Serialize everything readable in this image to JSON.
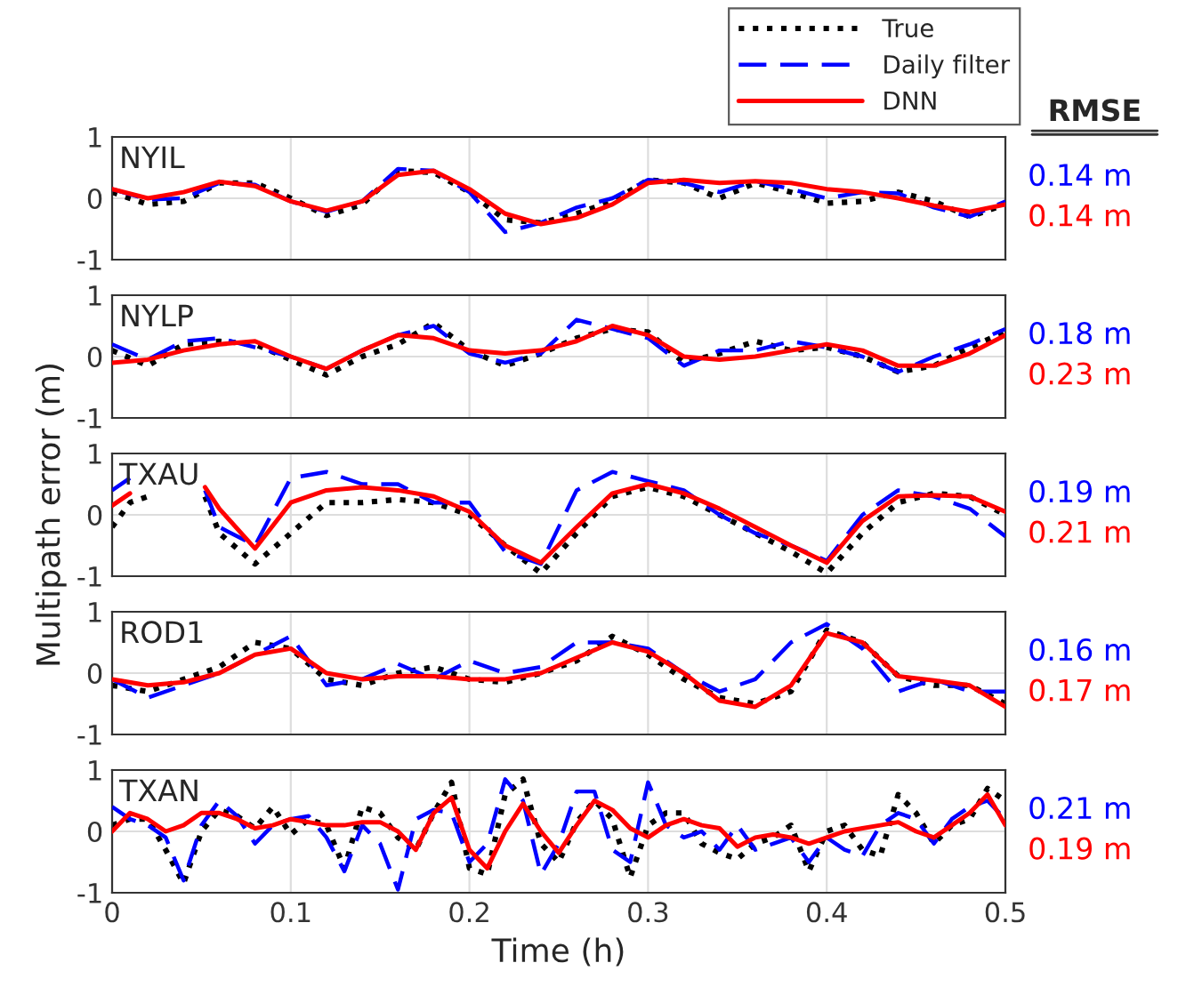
{
  "chart_data": [
    {
      "type": "line",
      "title": "NYIL",
      "legend": "top right",
      "grid": true,
      "tick_labels": "y",
      "xlim": [
        0,
        0.5
      ],
      "xticks": [
        0,
        0.1,
        0.2,
        0.3,
        0.4,
        0.5
      ],
      "ylim": [
        -1,
        1
      ],
      "yticks": [
        -1,
        0,
        1
      ],
      "x": [
        0,
        0.02,
        0.04,
        0.06,
        0.08,
        0.1,
        0.12,
        0.14,
        0.16,
        0.18,
        0.2,
        0.22,
        0.24,
        0.26,
        0.28,
        0.3,
        0.32,
        0.34,
        0.36,
        0.38,
        0.4,
        0.42,
        0.44,
        0.46,
        0.48,
        0.5
      ],
      "series": [
        {
          "name": "True",
          "color": "#000000",
          "line_style": "dotted",
          "values": [
            0.1,
            -0.1,
            -0.05,
            0.25,
            0.25,
            0.0,
            -0.28,
            -0.1,
            0.45,
            0.42,
            0.1,
            -0.35,
            -0.4,
            -0.25,
            -0.05,
            0.3,
            0.25,
            0.0,
            0.25,
            0.1,
            -0.08,
            -0.05,
            0.1,
            -0.05,
            -0.3,
            -0.1
          ]
        },
        {
          "name": "Daily filter",
          "color": "#0000ff",
          "line_style": "dashed",
          "values": [
            0.15,
            -0.02,
            0.0,
            0.25,
            0.22,
            -0.05,
            -0.22,
            -0.05,
            0.48,
            0.45,
            0.1,
            -0.55,
            -0.4,
            -0.15,
            0.0,
            0.3,
            0.25,
            0.1,
            0.28,
            0.15,
            0.0,
            0.1,
            0.08,
            -0.15,
            -0.3,
            -0.05
          ]
        },
        {
          "name": "DNN",
          "color": "#ff0000",
          "line_style": "solid",
          "values": [
            0.15,
            0.0,
            0.1,
            0.27,
            0.2,
            -0.05,
            -0.2,
            -0.05,
            0.38,
            0.45,
            0.15,
            -0.25,
            -0.42,
            -0.32,
            -0.1,
            0.25,
            0.3,
            0.25,
            0.28,
            0.25,
            0.15,
            0.1,
            0.0,
            -0.12,
            -0.22,
            -0.1
          ]
        }
      ],
      "annotations": [
        "RMSE",
        "0.14 m",
        "0.14 m"
      ]
    },
    {
      "type": "line",
      "title": "NYLP",
      "grid": true,
      "tick_labels": "y",
      "xlim": [
        0,
        0.5
      ],
      "xticks": [
        0,
        0.1,
        0.2,
        0.3,
        0.4,
        0.5
      ],
      "ylim": [
        -1,
        1
      ],
      "yticks": [
        -1,
        0,
        1
      ],
      "x": [
        0,
        0.02,
        0.04,
        0.06,
        0.08,
        0.1,
        0.12,
        0.14,
        0.16,
        0.18,
        0.2,
        0.22,
        0.24,
        0.26,
        0.28,
        0.3,
        0.32,
        0.34,
        0.36,
        0.38,
        0.4,
        0.42,
        0.44,
        0.46,
        0.48,
        0.5
      ],
      "series": [
        {
          "color": "#000000",
          "line_style": "dotted",
          "values": [
            0.1,
            -0.15,
            0.2,
            0.25,
            0.2,
            -0.05,
            -0.3,
            0.0,
            0.2,
            0.55,
            0.1,
            -0.15,
            0.05,
            0.3,
            0.45,
            0.4,
            -0.1,
            0.05,
            0.25,
            0.1,
            0.15,
            0.0,
            -0.25,
            -0.15,
            0.15,
            0.4
          ]
        },
        {
          "color": "#0000ff",
          "line_style": "dashed",
          "values": [
            0.2,
            -0.05,
            0.25,
            0.3,
            0.15,
            0.0,
            -0.2,
            0.1,
            0.35,
            0.5,
            0.05,
            -0.1,
            0.05,
            0.6,
            0.45,
            0.3,
            -0.15,
            0.1,
            0.1,
            0.25,
            0.15,
            0.0,
            -0.25,
            0.0,
            0.2,
            0.45
          ]
        },
        {
          "color": "#ff0000",
          "line_style": "solid",
          "values": [
            -0.1,
            -0.05,
            0.1,
            0.2,
            0.25,
            0.0,
            -0.2,
            0.1,
            0.35,
            0.3,
            0.1,
            0.05,
            0.1,
            0.25,
            0.5,
            0.35,
            0.0,
            -0.05,
            0.0,
            0.1,
            0.2,
            0.1,
            -0.15,
            -0.15,
            0.05,
            0.35
          ]
        }
      ],
      "annotations": [
        "0.18 m",
        "0.23 m"
      ]
    },
    {
      "type": "line",
      "title": "TXAU",
      "ylabel": "Multipath error (m)",
      "grid": true,
      "tick_labels": "y",
      "xlim": [
        0,
        0.5
      ],
      "xticks": [
        0,
        0.1,
        0.2,
        0.3,
        0.4,
        0.5
      ],
      "ylim": [
        -1,
        1
      ],
      "yticks": [
        -1,
        0,
        1
      ],
      "x": [
        0,
        0.01,
        0.02,
        0.03,
        0.052,
        0.06,
        0.08,
        0.1,
        0.12,
        0.14,
        0.16,
        0.18,
        0.2,
        0.22,
        0.24,
        0.26,
        0.28,
        0.3,
        0.32,
        0.34,
        0.36,
        0.38,
        0.4,
        0.42,
        0.44,
        0.46,
        0.48,
        0.5
      ],
      "series": [
        {
          "color": "#000000",
          "line_style": "dotted",
          "values": [
            -0.2,
            0.2,
            0.3,
            null,
            0.3,
            -0.3,
            -0.8,
            -0.3,
            0.2,
            0.2,
            0.25,
            0.2,
            0.0,
            -0.5,
            -0.95,
            -0.3,
            0.3,
            0.45,
            0.3,
            0.0,
            -0.3,
            -0.6,
            -0.95,
            -0.3,
            0.2,
            0.35,
            0.3,
            0.0
          ]
        },
        {
          "color": "#0000ff",
          "line_style": "dashed",
          "values": [
            0.4,
            0.6,
            null,
            null,
            0.4,
            -0.2,
            -0.5,
            0.6,
            0.7,
            0.5,
            0.5,
            0.2,
            0.2,
            -0.6,
            -0.8,
            0.4,
            0.7,
            0.55,
            0.4,
            0.0,
            -0.3,
            -0.5,
            -0.75,
            0.0,
            0.4,
            0.3,
            0.1,
            -0.35
          ]
        },
        {
          "color": "#ff0000",
          "line_style": "solid",
          "values": [
            0.15,
            0.35,
            null,
            null,
            0.45,
            0.1,
            -0.55,
            0.2,
            0.4,
            0.45,
            0.4,
            0.3,
            0.05,
            -0.5,
            -0.78,
            -0.2,
            0.35,
            0.5,
            0.35,
            0.1,
            -0.2,
            -0.5,
            -0.78,
            -0.1,
            0.3,
            0.32,
            0.3,
            0.05
          ]
        }
      ],
      "annotations": [
        "0.19 m",
        "0.21 m"
      ]
    },
    {
      "type": "line",
      "title": "ROD1",
      "grid": true,
      "tick_labels": "y",
      "xlim": [
        0,
        0.5
      ],
      "xticks": [
        0,
        0.1,
        0.2,
        0.3,
        0.4,
        0.5
      ],
      "ylim": [
        -1,
        1
      ],
      "yticks": [
        -1,
        0,
        1
      ],
      "x": [
        0,
        0.02,
        0.04,
        0.06,
        0.08,
        0.1,
        0.12,
        0.14,
        0.16,
        0.18,
        0.2,
        0.22,
        0.24,
        0.26,
        0.28,
        0.3,
        0.32,
        0.34,
        0.36,
        0.38,
        0.4,
        0.42,
        0.44,
        0.46,
        0.48,
        0.5
      ],
      "series": [
        {
          "color": "#000000",
          "line_style": "dotted",
          "values": [
            -0.2,
            -0.3,
            -0.1,
            0.1,
            0.5,
            0.4,
            -0.1,
            -0.2,
            0.0,
            0.1,
            -0.1,
            -0.15,
            0.0,
            0.2,
            0.6,
            0.3,
            -0.1,
            -0.4,
            -0.5,
            -0.3,
            0.7,
            0.5,
            -0.05,
            -0.2,
            -0.2,
            -0.5
          ]
        },
        {
          "color": "#0000ff",
          "line_style": "dashed",
          "values": [
            -0.1,
            -0.4,
            -0.2,
            0.0,
            0.3,
            0.6,
            -0.2,
            -0.1,
            0.15,
            -0.1,
            0.2,
            0.0,
            0.1,
            0.5,
            0.5,
            0.4,
            0.0,
            -0.3,
            -0.1,
            0.5,
            0.8,
            0.4,
            -0.3,
            -0.1,
            -0.3,
            -0.3
          ]
        },
        {
          "color": "#ff0000",
          "line_style": "solid",
          "values": [
            -0.1,
            -0.2,
            -0.15,
            0.0,
            0.3,
            0.4,
            0.0,
            -0.1,
            -0.05,
            -0.05,
            -0.1,
            -0.1,
            0.0,
            0.25,
            0.5,
            0.35,
            0.0,
            -0.45,
            -0.55,
            -0.2,
            0.65,
            0.5,
            -0.05,
            -0.12,
            -0.2,
            -0.55
          ]
        }
      ],
      "annotations": [
        "0.16 m",
        "0.17 m"
      ]
    },
    {
      "type": "line",
      "title": "TXAN",
      "xlabel": "Time (h)",
      "grid": true,
      "xlim": [
        0,
        0.5
      ],
      "xticks": [
        0,
        0.1,
        0.2,
        0.3,
        0.4,
        0.5
      ],
      "ylim": [
        -1,
        1
      ],
      "yticks": [
        -1,
        0,
        1
      ],
      "x": [
        0,
        0.01,
        0.02,
        0.03,
        0.04,
        0.05,
        0.06,
        0.07,
        0.08,
        0.09,
        0.1,
        0.11,
        0.12,
        0.13,
        0.14,
        0.15,
        0.16,
        0.17,
        0.18,
        0.19,
        0.2,
        0.21,
        0.22,
        0.23,
        0.24,
        0.25,
        0.26,
        0.27,
        0.28,
        0.29,
        0.3,
        0.31,
        0.32,
        0.33,
        0.34,
        0.35,
        0.36,
        0.37,
        0.38,
        0.39,
        0.4,
        0.41,
        0.42,
        0.43,
        0.44,
        0.45,
        0.46,
        0.47,
        0.48,
        0.49,
        0.5
      ],
      "series": [
        {
          "color": "#000000",
          "line_style": "dotted",
          "values": [
            0.1,
            0.2,
            0.2,
            -0.3,
            -0.85,
            0.0,
            0.35,
            0.25,
            0.05,
            0.4,
            -0.05,
            0.2,
            0.1,
            -0.6,
            0.4,
            0.3,
            -0.1,
            -0.3,
            0.3,
            0.8,
            -0.6,
            -0.7,
            0.6,
            0.85,
            -0.2,
            -0.5,
            0.15,
            0.5,
            0.2,
            -0.75,
            0.1,
            0.3,
            0.3,
            -0.2,
            -0.35,
            -0.45,
            -0.2,
            -0.1,
            0.1,
            -0.65,
            0.0,
            0.1,
            -0.3,
            -0.4,
            0.6,
            0.3,
            -0.2,
            0.1,
            0.2,
            0.7,
            0.5
          ]
        },
        {
          "color": "#0000ff",
          "line_style": "dashed",
          "values": [
            0.4,
            0.2,
            0.1,
            -0.1,
            -0.8,
            0.1,
            0.5,
            0.25,
            -0.2,
            0.1,
            0.2,
            0.25,
            -0.1,
            -0.65,
            0.1,
            -0.2,
            -0.95,
            0.2,
            0.35,
            0.3,
            -0.5,
            -0.2,
            0.85,
            0.5,
            -0.7,
            -0.2,
            0.65,
            0.65,
            -0.3,
            -0.5,
            0.8,
            0.1,
            -0.1,
            0.0,
            -0.3,
            0.1,
            -0.3,
            -0.2,
            -0.1,
            -0.5,
            -0.1,
            -0.3,
            -0.4,
            0.1,
            0.3,
            0.2,
            -0.2,
            0.2,
            0.4,
            0.5,
            0.2
          ]
        },
        {
          "color": "#ff0000",
          "line_style": "solid",
          "values": [
            0.0,
            0.3,
            0.2,
            0.0,
            0.1,
            0.3,
            0.3,
            0.2,
            0.05,
            0.1,
            0.2,
            0.15,
            0.1,
            0.1,
            0.15,
            0.15,
            0.0,
            -0.3,
            0.3,
            0.55,
            -0.3,
            -0.6,
            0.0,
            0.45,
            0.0,
            -0.35,
            0.1,
            0.5,
            0.35,
            0.05,
            -0.1,
            0.1,
            0.2,
            0.1,
            0.05,
            -0.25,
            -0.1,
            -0.05,
            -0.1,
            -0.2,
            -0.1,
            0.0,
            0.05,
            0.1,
            0.15,
            0.0,
            -0.1,
            0.1,
            0.3,
            0.6,
            0.1
          ]
        }
      ],
      "annotations": [
        "0.21 m",
        "0.19 m"
      ]
    }
  ]
}
